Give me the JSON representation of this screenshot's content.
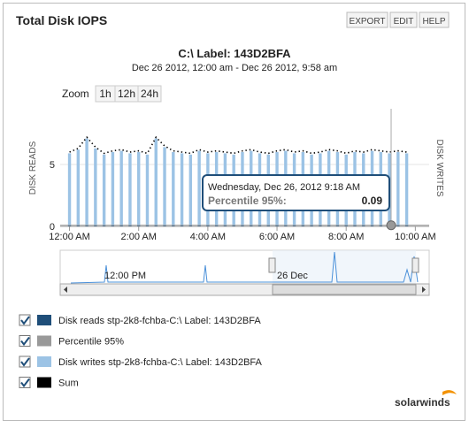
{
  "header": {
    "title": "Total Disk IOPS",
    "buttons": [
      "EXPORT",
      "EDIT",
      "HELP"
    ]
  },
  "chart_data": {
    "type": "bar",
    "title": "C:\\ Label: 143D2BFA",
    "subtitle": "Dec 26 2012, 12:00 am - Dec 26 2012, 9:58 am",
    "zoom": {
      "label": "Zoom",
      "options": [
        "1h",
        "12h",
        "24h"
      ]
    },
    "y_label": "DISK READS",
    "y2_label": "DISK WRITES",
    "x": [
      0,
      0.25,
      0.5,
      0.75,
      1,
      1.25,
      1.5,
      1.75,
      2,
      2.25,
      2.5,
      2.75,
      3,
      3.25,
      3.5,
      3.75,
      4,
      4.25,
      4.5,
      4.75,
      5,
      5.25,
      5.5,
      5.75,
      6,
      6.25,
      6.5,
      6.75,
      7,
      7.25,
      7.5,
      7.75,
      8,
      8.25,
      8.5,
      8.75,
      9,
      9.25,
      9.5,
      9.75
    ],
    "xlim": [
      -0.27,
      10.4
    ],
    "xticks": [
      {
        "value": 0,
        "label": "12:00 AM"
      },
      {
        "value": 2,
        "label": "2:00 AM"
      },
      {
        "value": 4,
        "label": "4:00 AM"
      },
      {
        "value": 6,
        "label": "6:00 AM"
      },
      {
        "value": 8,
        "label": "8:00 AM"
      },
      {
        "value": 10,
        "label": "10:00 AM"
      }
    ],
    "ylim": [
      0,
      9.5
    ],
    "yticks": [
      0,
      5
    ],
    "series": [
      {
        "name": "Disk reads stp-2k8-fchba-C:\\ Label: 143D2BFA",
        "color": "#1f4e79",
        "values": [
          0.05,
          0.05,
          0.05,
          0.05,
          0.05,
          0.05,
          0.05,
          0.05,
          0.05,
          0.05,
          0.05,
          0.05,
          0.05,
          0.05,
          0.05,
          0.05,
          0.05,
          0.05,
          0.05,
          0.05,
          0.05,
          0.05,
          0.05,
          0.05,
          0.05,
          0.05,
          0.05,
          0.05,
          0.05,
          0.05,
          0.05,
          0.05,
          0.05,
          0.05,
          0.05,
          0.05,
          0.05,
          0.05,
          0.05,
          0.05
        ]
      },
      {
        "name": "Percentile 95%",
        "color": "#999999",
        "value": 0.09
      },
      {
        "name": "Disk writes stp-2k8-fchba-C:\\ Label: 143D2BFA",
        "color": "#9cc3e5",
        "values": [
          5.9,
          6.2,
          7.1,
          6.3,
          5.8,
          6.0,
          6.1,
          5.9,
          6.0,
          5.8,
          7.1,
          6.4,
          6.0,
          5.9,
          5.8,
          6.1,
          5.9,
          6.0,
          5.9,
          5.8,
          6.0,
          6.1,
          5.9,
          5.8,
          6.0,
          6.1,
          5.9,
          6.0,
          5.8,
          5.9,
          6.1,
          6.0,
          5.8,
          6.0,
          5.9,
          6.1,
          6.0,
          5.9,
          6.0,
          5.9
        ]
      },
      {
        "name": "Sum",
        "color": "#000000",
        "values": [
          6.0,
          6.3,
          7.2,
          6.4,
          5.9,
          6.1,
          6.2,
          6.0,
          6.1,
          5.9,
          7.2,
          6.5,
          6.1,
          6.0,
          5.9,
          6.2,
          6.0,
          6.1,
          6.0,
          5.9,
          6.1,
          6.2,
          6.0,
          5.9,
          6.1,
          6.2,
          6.0,
          6.1,
          5.9,
          6.0,
          6.2,
          6.1,
          5.9,
          6.1,
          6.0,
          6.2,
          6.1,
          6.0,
          6.1,
          6.0
        ]
      }
    ],
    "tooltip": {
      "title": "Wednesday, Dec 26, 2012 9:18 AM",
      "label": "Percentile 95%:",
      "value": 0.09,
      "x": 9.3
    },
    "navigator": {
      "labels": [
        "12:00 PM",
        "26 Dec"
      ]
    }
  },
  "logo": "solarwinds"
}
